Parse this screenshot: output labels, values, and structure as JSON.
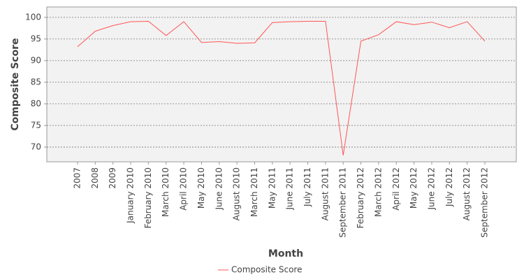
{
  "chart_data": {
    "type": "line",
    "x_label": "Month",
    "y_label": "Composite Score",
    "categories": [
      "2007",
      "2008",
      "2009",
      "January 2010",
      "February 2010",
      "March 2010",
      "April 2010",
      "May 2010",
      "June 2010",
      "August 2010",
      "March 2011",
      "May 2011",
      "June 2011",
      "July 2011",
      "August 2011",
      "September 2011",
      "February 2012",
      "March 2012",
      "April 2012",
      "May 2012",
      "June 2012",
      "July 2012",
      "August 2012",
      "September 2012"
    ],
    "series": [
      {
        "name": "Composite Score",
        "color": "#ff5555",
        "values": [
          93.2,
          96.8,
          98.1,
          99.0,
          99.1,
          95.8,
          99.0,
          94.2,
          94.4,
          94.0,
          94.1,
          98.8,
          99.0,
          99.1,
          99.1,
          68.1,
          94.5,
          96.0,
          99.0,
          98.3,
          98.9,
          97.6,
          99.0,
          94.5
        ]
      }
    ],
    "ylim": [
      66.6,
      102.4
    ],
    "yticks": [
      70,
      75,
      80,
      85,
      90,
      95,
      100
    ],
    "grid": true
  }
}
